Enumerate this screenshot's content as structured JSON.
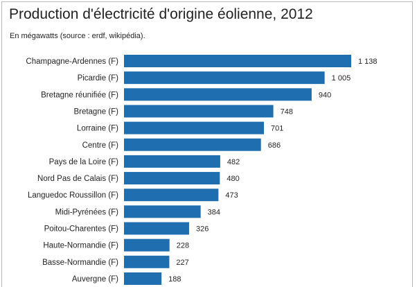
{
  "chart_data": {
    "type": "bar",
    "orientation": "horizontal",
    "title": "Production d'électricité d'origine éolienne, 2012",
    "subtitle": "En mégawatts (source : erdf, wikipédia).",
    "categories": [
      "Champagne-Ardennes (F)",
      "Picardie (F)",
      "Bretagne réunifiée (F)",
      "Bretagne (F)",
      "Lorraine (F)",
      "Centre (F)",
      "Pays de la Loire (F)",
      "Nord Pas de Calais (F)",
      "Languedoc Roussillon (F)",
      "Midi-Pyrénées (F)",
      "Poitou-Charentes (F)",
      "Haute-Normandie (F)",
      "Basse-Normandie (F)",
      "Auvergne (F)"
    ],
    "values": [
      1138,
      1005,
      940,
      748,
      701,
      686,
      482,
      480,
      473,
      384,
      326,
      228,
      227,
      188
    ],
    "value_labels": [
      "1 138",
      "1 005",
      "940",
      "748",
      "701",
      "686",
      "482",
      "480",
      "473",
      "384",
      "326",
      "228",
      "227",
      "188"
    ],
    "bar_color": "#1f6eb0",
    "grid": false,
    "legend": "none"
  }
}
